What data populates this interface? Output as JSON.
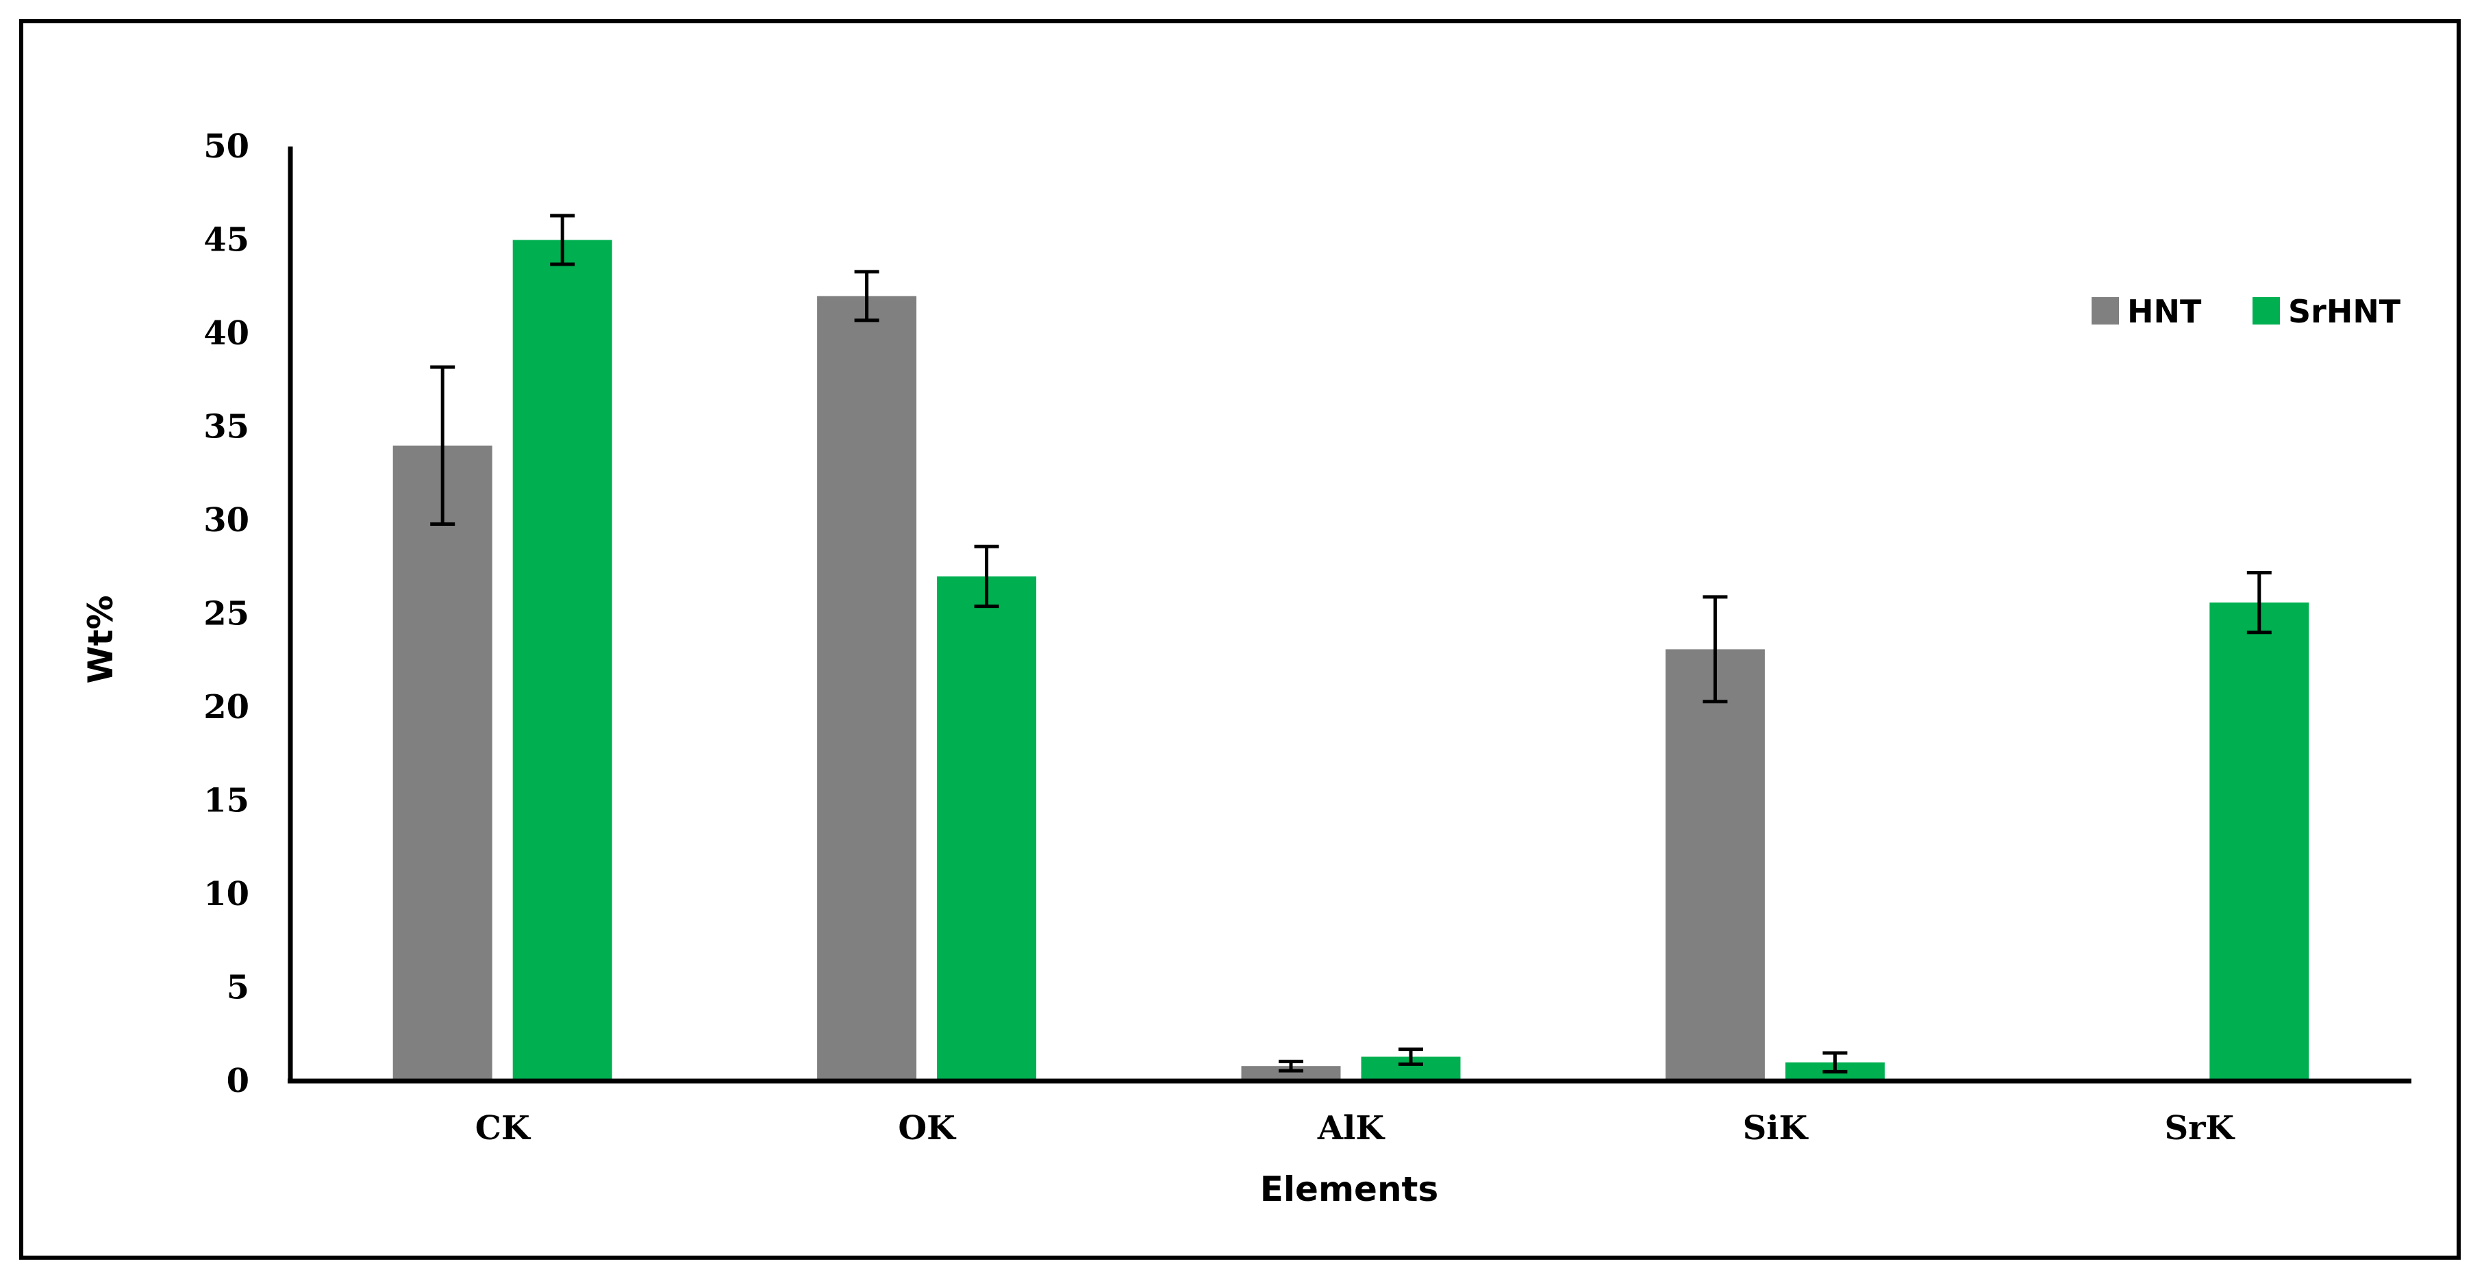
{
  "chart_data": {
    "type": "bar",
    "title": "",
    "xlabel": "Elements",
    "ylabel": "Wt%",
    "categories": [
      "CK",
      "OK",
      "AlK",
      "SiK",
      "SrK"
    ],
    "ylim": [
      0,
      50
    ],
    "yticks": [
      0,
      5,
      10,
      15,
      20,
      25,
      30,
      35,
      40,
      45,
      50
    ],
    "grid": false,
    "legend_position": "top-right",
    "series": [
      {
        "name": "HNT",
        "color": "#808080",
        "values": [
          34.0,
          42.0,
          0.8,
          23.1,
          null
        ],
        "errors": [
          4.2,
          1.3,
          0.25,
          2.8,
          null
        ]
      },
      {
        "name": "SrHNT",
        "color": "#00B050",
        "values": [
          45.0,
          27.0,
          1.3,
          1.0,
          25.6
        ],
        "errors": [
          1.3,
          1.6,
          0.4,
          0.5,
          1.6
        ]
      }
    ]
  }
}
